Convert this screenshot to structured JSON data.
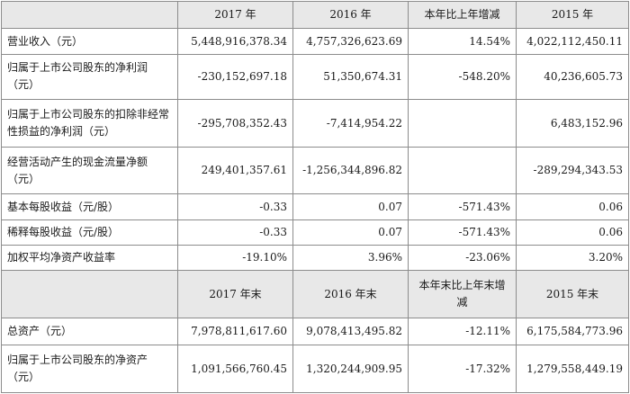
{
  "header1": [
    "",
    "2017 年",
    "2016 年",
    "本年比上年增减",
    "2015 年"
  ],
  "rows1": [
    {
      "label": "营业收入（元）",
      "v2017": "5,448,916,378.34",
      "v2016": "4,757,326,623.69",
      "change": "14.54%",
      "v2015": "4,022,112,450.11"
    },
    {
      "label": "归属于上市公司股东的净利润（元）",
      "v2017": "-230,152,697.18",
      "v2016": "51,350,674.31",
      "change": "-548.20%",
      "v2015": "40,236,605.73"
    },
    {
      "label": "归属于上市公司股东的扣除非经常性损益的净利润（元）",
      "v2017": "-295,708,352.43",
      "v2016": "-7,414,954.22",
      "change": "",
      "v2015": "6,483,152.96"
    },
    {
      "label": "经营活动产生的现金流量净额（元）",
      "v2017": "249,401,357.61",
      "v2016": "-1,256,344,896.82",
      "change": "",
      "v2015": "-289,294,343.53"
    },
    {
      "label": "基本每股收益（元/股）",
      "v2017": "-0.33",
      "v2016": "0.07",
      "change": "-571.43%",
      "v2015": "0.06"
    },
    {
      "label": "稀释每股收益（元/股）",
      "v2017": "-0.33",
      "v2016": "0.07",
      "change": "-571.43%",
      "v2015": "0.06"
    },
    {
      "label": "加权平均净资产收益率",
      "v2017": "-19.10%",
      "v2016": "3.96%",
      "change": "-23.06%",
      "v2015": "3.20%"
    }
  ],
  "header2": [
    "",
    "2017 年末",
    "2016 年末",
    "本年末比上年末增减",
    "2015 年末"
  ],
  "rows2": [
    {
      "label": "总资产（元）",
      "v2017": "7,978,811,617.60",
      "v2016": "9,078,413,495.82",
      "change": "-12.11%",
      "v2015": "6,175,584,773.96"
    },
    {
      "label": "归属于上市公司股东的净资产（元）",
      "v2017": "1,091,566,760.45",
      "v2016": "1,320,244,909.95",
      "change": "-17.32%",
      "v2015": "1,279,558,449.19"
    }
  ]
}
